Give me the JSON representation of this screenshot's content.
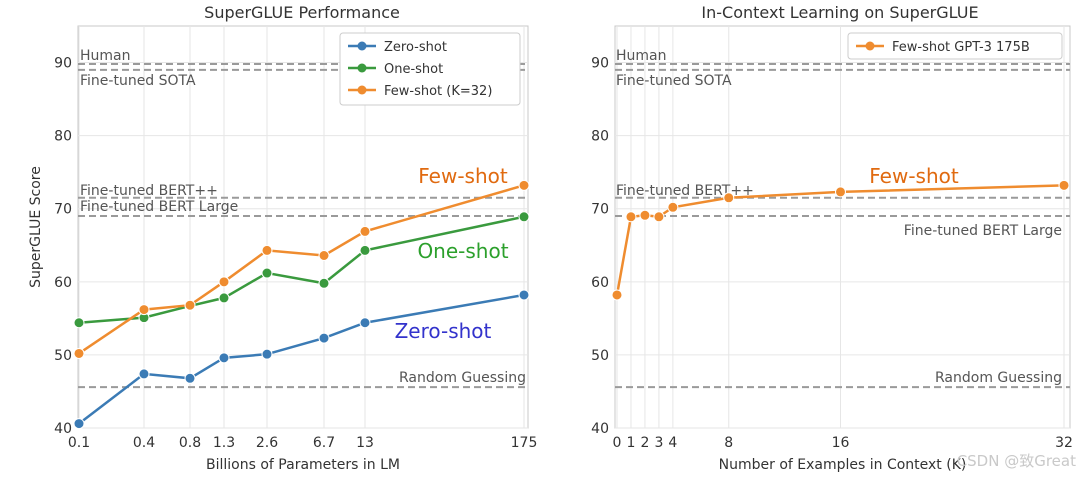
{
  "chart_data": [
    {
      "type": "line",
      "title": "SuperGLUE Performance",
      "xlabel": "Billions of Parameters in LM",
      "ylabel": "SuperGLUE Score",
      "ylim": [
        40,
        95
      ],
      "yticks": [
        40,
        50,
        60,
        70,
        80,
        90
      ],
      "categories": [
        "0.1",
        "0.4",
        "0.8",
        "1.3",
        "2.6",
        "6.7",
        "13",
        "175"
      ],
      "series": [
        {
          "name": "Zero-shot",
          "color": "#3b7bb5",
          "values": [
            40.6,
            47.4,
            46.8,
            49.6,
            50.1,
            52.3,
            54.4,
            58.2
          ]
        },
        {
          "name": "One-shot",
          "color": "#3a9a3e",
          "values": [
            54.4,
            55.1,
            56.7,
            57.8,
            61.2,
            59.8,
            64.3,
            68.9
          ]
        },
        {
          "name": "Few-shot (K=32)",
          "color": "#ef8c2f",
          "values": [
            50.2,
            56.2,
            56.8,
            60.0,
            64.3,
            63.6,
            66.9,
            73.2
          ]
        }
      ],
      "reference_lines": [
        {
          "label": "Human",
          "value": 89.8
        },
        {
          "label": "Fine-tuned SOTA",
          "value": 89.0
        },
        {
          "label": "Fine-tuned BERT++",
          "value": 71.5
        },
        {
          "label": "Fine-tuned BERT Large",
          "value": 69.0
        },
        {
          "label": "Random Guessing",
          "value": 45.6
        }
      ],
      "annotations": [
        {
          "text": "Few-shot",
          "color": "#e06a10"
        },
        {
          "text": "One-shot",
          "color": "#2ca02c"
        },
        {
          "text": "Zero-shot",
          "color": "#3333cc"
        }
      ],
      "legend": "top-right",
      "grid": true
    },
    {
      "type": "line",
      "title": "In-Context Learning on SuperGLUE",
      "xlabel": "Number of Examples in Context (K)",
      "ylabel": "",
      "ylim": [
        40,
        95
      ],
      "xlim": [
        0,
        32
      ],
      "yticks": [
        40,
        50,
        60,
        70,
        80,
        90
      ],
      "xticks": [
        0,
        1,
        2,
        3,
        4,
        8,
        16,
        32
      ],
      "series": [
        {
          "name": "Few-shot GPT-3 175B",
          "color": "#ef8c2f",
          "x": [
            0,
            1,
            2,
            3,
            4,
            8,
            16,
            32
          ],
          "values": [
            58.2,
            68.9,
            69.1,
            68.9,
            70.2,
            71.5,
            72.3,
            73.2
          ]
        }
      ],
      "reference_lines": [
        {
          "label": "Human",
          "value": 89.8
        },
        {
          "label": "Fine-tuned SOTA",
          "value": 89.0
        },
        {
          "label": "Fine-tuned BERT++",
          "value": 71.5
        },
        {
          "label": "Fine-tuned BERT Large",
          "value": 69.0
        },
        {
          "label": "Random Guessing",
          "value": 45.6
        }
      ],
      "annotations": [
        {
          "text": "Few-shot",
          "color": "#e06a10"
        }
      ],
      "legend": "top-right",
      "grid": true
    }
  ],
  "watermark": "CSDN @致Great"
}
